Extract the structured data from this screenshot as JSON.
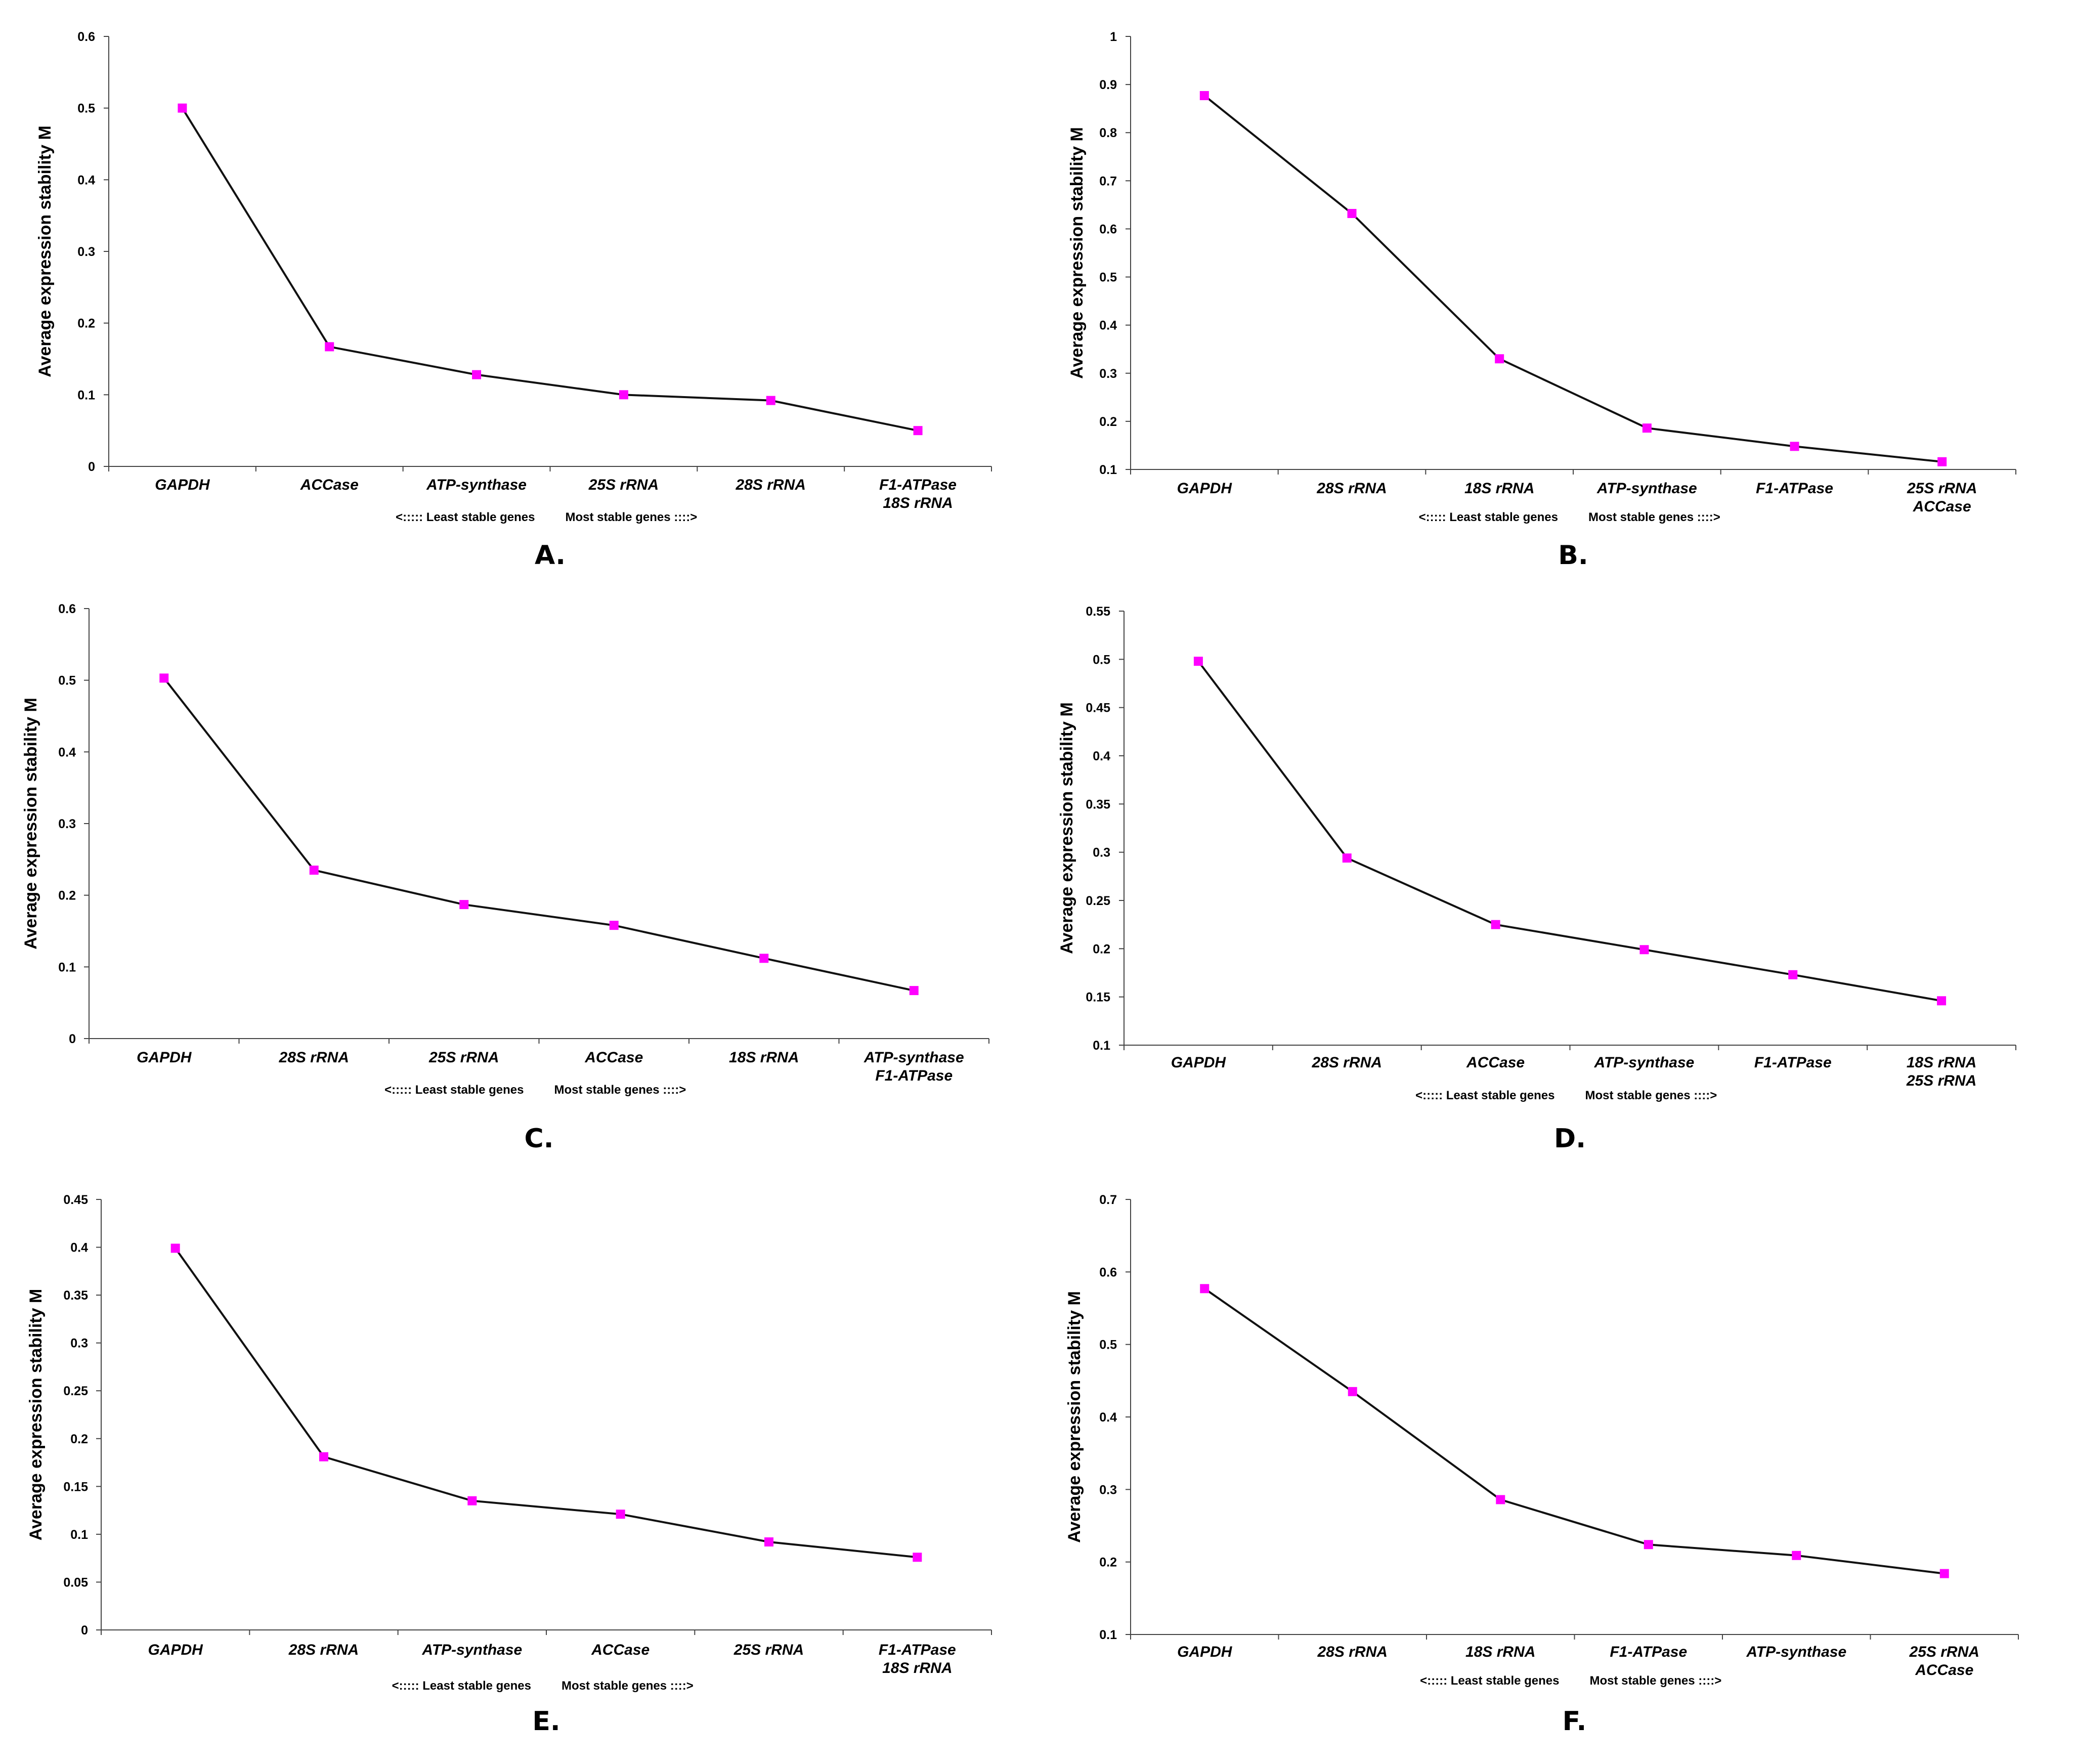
{
  "chart_data": [
    {
      "type": "line",
      "panel_label": "A.",
      "ylabel": "Average expression stability M",
      "ylim": [
        0,
        0.6
      ],
      "yticks": [
        "0",
        "0.1",
        "0.2",
        "0.3",
        "0.4",
        "0.5",
        "0.6"
      ],
      "categories": [
        [
          "GAPDH"
        ],
        [
          "ACCase"
        ],
        [
          "ATP-synthase"
        ],
        [
          "25S rRNA"
        ],
        [
          "28S rRNA"
        ],
        [
          "F1-ATPase",
          "18S rRNA"
        ]
      ],
      "values": [
        0.5,
        0.167,
        0.128,
        0.1,
        0.092,
        0.05
      ],
      "note_left": "<:::::  Least stable genes",
      "note_right": "Most stable genes ::::>"
    },
    {
      "type": "line",
      "panel_label": "B.",
      "ylabel": "Average expression stability M",
      "ylim": [
        0.1,
        1
      ],
      "yticks": [
        "0.1",
        "0.2",
        "0.3",
        "0.4",
        "0.5",
        "0.6",
        "0.7",
        "0.8",
        "0.9",
        "1"
      ],
      "categories": [
        [
          "GAPDH"
        ],
        [
          "28S rRNA"
        ],
        [
          "18S rRNA"
        ],
        [
          "ATP-synthase"
        ],
        [
          "F1-ATPase"
        ],
        [
          "25S rRNA",
          "ACCase"
        ]
      ],
      "values": [
        0.877,
        0.632,
        0.33,
        0.186,
        0.148,
        0.116
      ],
      "note_left": "<:::::  Least stable genes",
      "note_right": "Most stable genes ::::>"
    },
    {
      "type": "line",
      "panel_label": "C.",
      "ylabel": "Average expression stability M",
      "ylim": [
        0,
        0.6
      ],
      "yticks": [
        "0",
        "0.1",
        "0.2",
        "0.3",
        "0.4",
        "0.5",
        "0.6"
      ],
      "categories": [
        [
          "GAPDH"
        ],
        [
          "28S rRNA"
        ],
        [
          "25S rRNA"
        ],
        [
          "ACCase"
        ],
        [
          "18S rRNA"
        ],
        [
          "ATP-synthase",
          "F1-ATPase"
        ]
      ],
      "values": [
        0.503,
        0.235,
        0.187,
        0.158,
        0.112,
        0.067
      ],
      "note_left": "<:::::  Least stable genes",
      "note_right": "Most stable genes ::::>"
    },
    {
      "type": "line",
      "panel_label": "D.",
      "ylabel": "Average expression stability M",
      "ylim": [
        0.1,
        0.55
      ],
      "yticks": [
        "0.1",
        "0.15",
        "0.2",
        "0.25",
        "0.3",
        "0.35",
        "0.4",
        "0.45",
        "0.5",
        "0.55"
      ],
      "categories": [
        [
          "GAPDH"
        ],
        [
          "28S rRNA"
        ],
        [
          "ACCase"
        ],
        [
          "ATP-synthase"
        ],
        [
          "F1-ATPase"
        ],
        [
          "18S rRNA",
          "25S rRNA"
        ]
      ],
      "values": [
        0.498,
        0.294,
        0.225,
        0.199,
        0.173,
        0.146
      ],
      "note_left": "<:::::  Least stable genes",
      "note_right": "Most stable genes ::::>"
    },
    {
      "type": "line",
      "panel_label": "E.",
      "ylabel": "Average expression stability M",
      "ylim": [
        0,
        0.45
      ],
      "yticks": [
        "0",
        "0.05",
        "0.1",
        "0.15",
        "0.2",
        "0.25",
        "0.3",
        "0.35",
        "0.4",
        "0.45"
      ],
      "categories": [
        [
          "GAPDH"
        ],
        [
          "28S rRNA"
        ],
        [
          "ATP-synthase"
        ],
        [
          "ACCase"
        ],
        [
          "25S rRNA"
        ],
        [
          "F1-ATPase",
          "18S rRNA"
        ]
      ],
      "values": [
        0.399,
        0.181,
        0.135,
        0.121,
        0.092,
        0.076
      ],
      "note_left": "<:::::  Least stable genes",
      "note_right": "Most stable genes ::::>"
    },
    {
      "type": "line",
      "panel_label": "F.",
      "ylabel": "Average expression stability M",
      "ylim": [
        0.1,
        0.7
      ],
      "yticks": [
        "0.1",
        "0.2",
        "0.3",
        "0.4",
        "0.5",
        "0.6",
        "0.7"
      ],
      "categories": [
        [
          "GAPDH"
        ],
        [
          "28S rRNA"
        ],
        [
          "18S rRNA"
        ],
        [
          "F1-ATPase"
        ],
        [
          "ATP-synthase"
        ],
        [
          "25S rRNA",
          "ACCase"
        ]
      ],
      "values": [
        0.577,
        0.435,
        0.286,
        0.224,
        0.209,
        0.184
      ],
      "note_left": "<:::::  Least stable genes",
      "note_right": "Most stable genes ::::>"
    }
  ],
  "colors": {
    "line": "#111111",
    "marker": "#ff00ff",
    "axis": "#444444"
  }
}
